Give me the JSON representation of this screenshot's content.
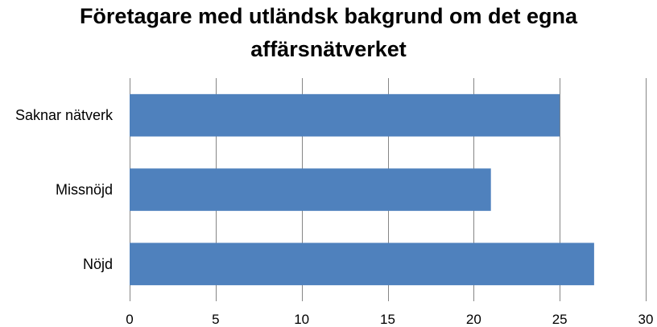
{
  "chart_data": {
    "type": "bar",
    "orientation": "horizontal",
    "title_lines": [
      "Företagare med utländsk bakgrund om det egna",
      "affärsnätverket"
    ],
    "categories": [
      "Saknar nätverk",
      "Missnöjd",
      "Nöjd"
    ],
    "values": [
      25,
      21,
      27
    ],
    "xlim": [
      0,
      30
    ],
    "xticks": [
      "0",
      "5",
      "10",
      "15",
      "20",
      "25",
      "30"
    ],
    "grid": true,
    "legend": "none",
    "bar_color": "#4F81BD",
    "grid_color": "#868686"
  }
}
